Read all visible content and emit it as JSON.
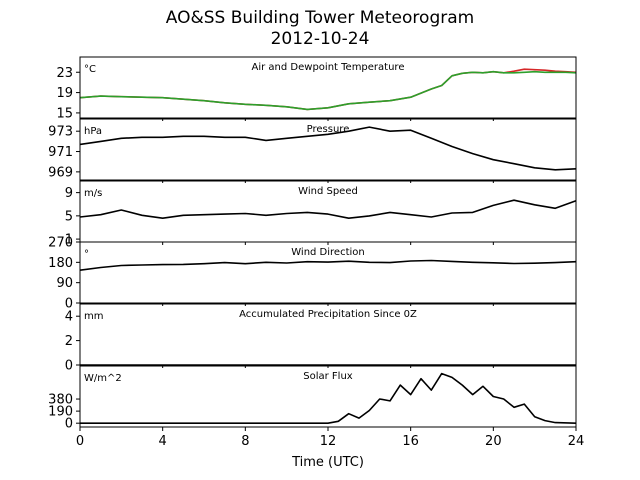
{
  "title_line1": "AO&SS Building Tower Meteorogram",
  "title_line2": "2012-10-24",
  "chart_data": {
    "type": "line",
    "xlabel": "Time (UTC)",
    "xlim": [
      0,
      24
    ],
    "xticks": [
      0,
      4,
      8,
      12,
      16,
      20,
      24
    ],
    "panels": [
      {
        "title": "Air and Dewpoint Temperature",
        "unit": "°C",
        "ylim": [
          14,
          26
        ],
        "yticks": [
          15,
          19,
          23
        ],
        "series": [
          {
            "color": "#d62728",
            "x": [
              0,
              1,
              2,
              3,
              4,
              5,
              6,
              7,
              8,
              9,
              10,
              11,
              12,
              13,
              14,
              15,
              16,
              17,
              17.5,
              18,
              18.5,
              19,
              19.5,
              20,
              20.5,
              21,
              21.5,
              22,
              22.5,
              23,
              23.5,
              24
            ],
            "y": [
              18,
              18.3,
              18.2,
              18.1,
              18,
              17.7,
              17.4,
              17,
              16.7,
              16.5,
              16.2,
              15.7,
              16,
              16.8,
              17.1,
              17.4,
              18.1,
              19.7,
              20.4,
              22.3,
              22.8,
              23,
              22.9,
              23.1,
              22.9,
              23.2,
              23.6,
              23.5,
              23.4,
              23.2,
              23.1,
              23
            ]
          },
          {
            "color": "#2ca02c",
            "x": [
              0,
              1,
              2,
              3,
              4,
              5,
              6,
              7,
              8,
              9,
              10,
              11,
              12,
              13,
              14,
              15,
              16,
              17,
              17.5,
              18,
              18.5,
              19,
              19.5,
              20,
              20.5,
              21,
              21.5,
              22,
              22.5,
              23,
              23.5,
              24
            ],
            "y": [
              18,
              18.3,
              18.2,
              18.1,
              18,
              17.7,
              17.4,
              17,
              16.7,
              16.5,
              16.2,
              15.7,
              16,
              16.8,
              17.1,
              17.4,
              18.1,
              19.7,
              20.4,
              22.3,
              22.8,
              23,
              22.9,
              23.1,
              22.9,
              22.9,
              23,
              23.1,
              23,
              23,
              23,
              22.9
            ]
          }
        ]
      },
      {
        "title": "Pressure",
        "unit": "hPa",
        "ylim": [
          968.2,
          974.2
        ],
        "yticks": [
          969,
          971,
          973
        ],
        "series": [
          {
            "color": "#000000",
            "x": [
              0,
              1,
              2,
              3,
              4,
              5,
              6,
              7,
              8,
              9,
              10,
              11,
              12,
              13,
              14,
              15,
              16,
              17,
              18,
              19,
              20,
              21,
              22,
              23,
              24
            ],
            "y": [
              971.7,
              972,
              972.3,
              972.4,
              972.4,
              972.5,
              972.5,
              972.4,
              972.4,
              972.1,
              972.3,
              972.5,
              972.7,
              973,
              973.4,
              973,
              973.1,
              972.3,
              971.5,
              970.8,
              970.2,
              969.8,
              969.4,
              969.2,
              969.3
            ]
          }
        ]
      },
      {
        "title": "Wind Speed",
        "unit": "m/s",
        "ylim": [
          0.5,
          11
        ],
        "yticks": [
          1,
          5,
          9
        ],
        "series": [
          {
            "color": "#000000",
            "x": [
              0,
              1,
              2,
              3,
              4,
              5,
              6,
              7,
              8,
              9,
              10,
              11,
              12,
              13,
              14,
              15,
              16,
              17,
              18,
              19,
              20,
              21,
              22,
              23,
              24
            ],
            "y": [
              4.8,
              5.2,
              6,
              5.1,
              4.6,
              5.1,
              5.2,
              5.3,
              5.4,
              5.1,
              5.4,
              5.6,
              5.3,
              4.6,
              5,
              5.6,
              5.2,
              4.8,
              5.5,
              5.6,
              6.8,
              7.7,
              6.9,
              6.3,
              7.6
            ]
          }
        ]
      },
      {
        "title": "Wind Direction",
        "unit": "°",
        "ylim": [
          0,
          270
        ],
        "yticks": [
          0,
          90,
          180,
          270
        ],
        "series": [
          {
            "color": "#000000",
            "x": [
              0,
              1,
              2,
              3,
              4,
              5,
              6,
              7,
              8,
              9,
              10,
              11,
              12,
              13,
              14,
              15,
              16,
              17,
              18,
              19,
              20,
              21,
              22,
              23,
              24
            ],
            "y": [
              145,
              157,
              166,
              168,
              170,
              171,
              174,
              179,
              174,
              180,
              177,
              183,
              181,
              185,
              180,
              179,
              186,
              188,
              184,
              180,
              178,
              175,
              176,
              179,
              183
            ]
          }
        ]
      },
      {
        "title": "Accumulated Precipitation Since 0Z",
        "unit": "mm",
        "ylim": [
          0,
          5
        ],
        "yticks": [
          0,
          2,
          4
        ],
        "series": [
          {
            "color": "#000000",
            "x": [
              0,
              24
            ],
            "y": [
              0,
              0
            ]
          }
        ]
      },
      {
        "title": "Solar Flux",
        "unit": "W/m^2",
        "ylim": [
          -60,
          900
        ],
        "yticks": [
          0,
          190,
          380
        ],
        "series": [
          {
            "color": "#000000",
            "x": [
              0,
              12,
              12.5,
              13,
              13.5,
              14,
              14.5,
              15,
              15.5,
              16,
              16.5,
              17,
              17.5,
              18,
              18.5,
              19,
              19.5,
              20,
              20.5,
              21,
              21.5,
              22,
              22.5,
              23,
              24
            ],
            "y": [
              0,
              0,
              30,
              150,
              80,
              200,
              380,
              350,
              600,
              450,
              700,
              520,
              780,
              720,
              600,
              450,
              580,
              420,
              380,
              250,
              300,
              100,
              40,
              10,
              0
            ]
          }
        ]
      }
    ]
  }
}
